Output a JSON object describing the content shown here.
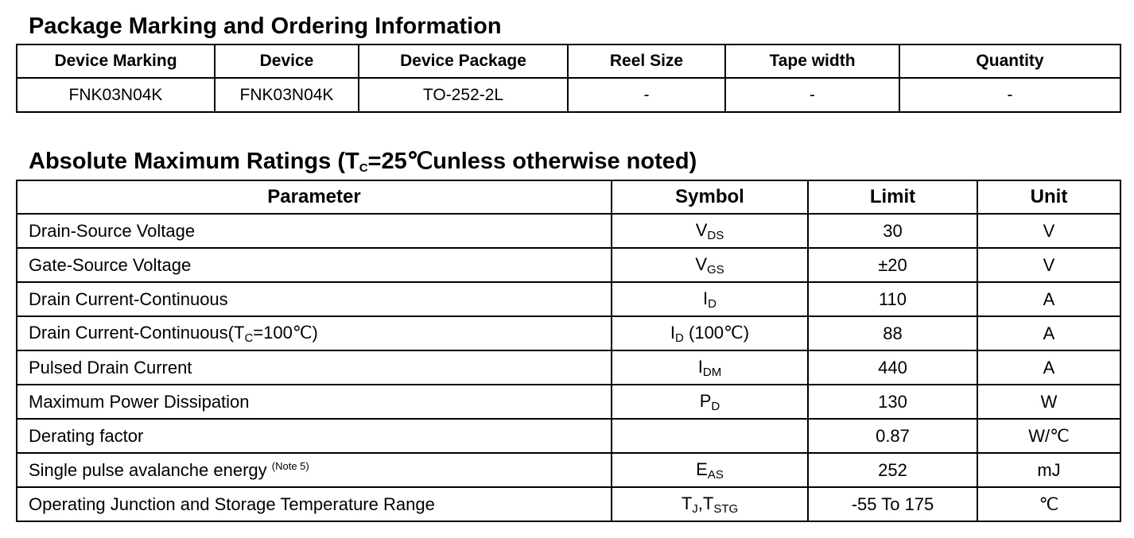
{
  "ordering": {
    "title": "Package Marking and Ordering Information",
    "headers": [
      "Device Marking",
      "Device",
      "Device Package",
      "Reel Size",
      "Tape width",
      "Quantity"
    ],
    "row": [
      "FNK03N04K",
      "FNK03N04K",
      "TO-252-2L",
      "-",
      "-",
      "-"
    ]
  },
  "ratings": {
    "title_pre": "Absolute Maximum Ratings (T",
    "title_sub": "C",
    "title_post": "=25℃unless otherwise noted)",
    "headers": [
      "Parameter",
      "Symbol",
      "Limit",
      "Unit"
    ],
    "rows": [
      {
        "param": "Drain-Source Voltage",
        "sym": "V",
        "sub": "DS",
        "sym2": "",
        "sub2": "",
        "limit": "30",
        "unit": "V"
      },
      {
        "param": "Gate-Source Voltage",
        "sym": "V",
        "sub": "GS",
        "sym2": "",
        "sub2": "",
        "limit": "±20",
        "unit": "V"
      },
      {
        "param": "Drain Current-Continuous",
        "sym": "I",
        "sub": "D",
        "sym2": "",
        "sub2": "",
        "limit": "110",
        "unit": "A"
      },
      {
        "param": "Drain Current-Continuous(T",
        "param_sub": "C",
        "param_post": "=100℃)",
        "sym": "I",
        "sub": "D",
        "sym2": " (100℃)",
        "sub2": "",
        "limit": "88",
        "unit": "A"
      },
      {
        "param": "Pulsed Drain Current",
        "sym": "I",
        "sub": "DM",
        "sym2": "",
        "sub2": "",
        "limit": "440",
        "unit": "A"
      },
      {
        "param": "Maximum Power Dissipation",
        "sym": "P",
        "sub": "D",
        "sym2": "",
        "sub2": "",
        "limit": "130",
        "unit": "W"
      },
      {
        "param": "Derating factor",
        "sym": "",
        "sub": "",
        "sym2": "",
        "sub2": "",
        "limit": "0.87",
        "unit": "W/℃"
      },
      {
        "param": "Single pulse avalanche energy ",
        "note": "(Note 5)",
        "sym": "E",
        "sub": "AS",
        "sym2": "",
        "sub2": "",
        "limit": "252",
        "unit": "mJ"
      },
      {
        "param": "Operating Junction and Storage Temperature Range",
        "sym": "T",
        "sub": "J",
        "sym2": ",T",
        "sub2": "STG",
        "limit": "-55 To 175",
        "unit": "℃"
      }
    ]
  }
}
